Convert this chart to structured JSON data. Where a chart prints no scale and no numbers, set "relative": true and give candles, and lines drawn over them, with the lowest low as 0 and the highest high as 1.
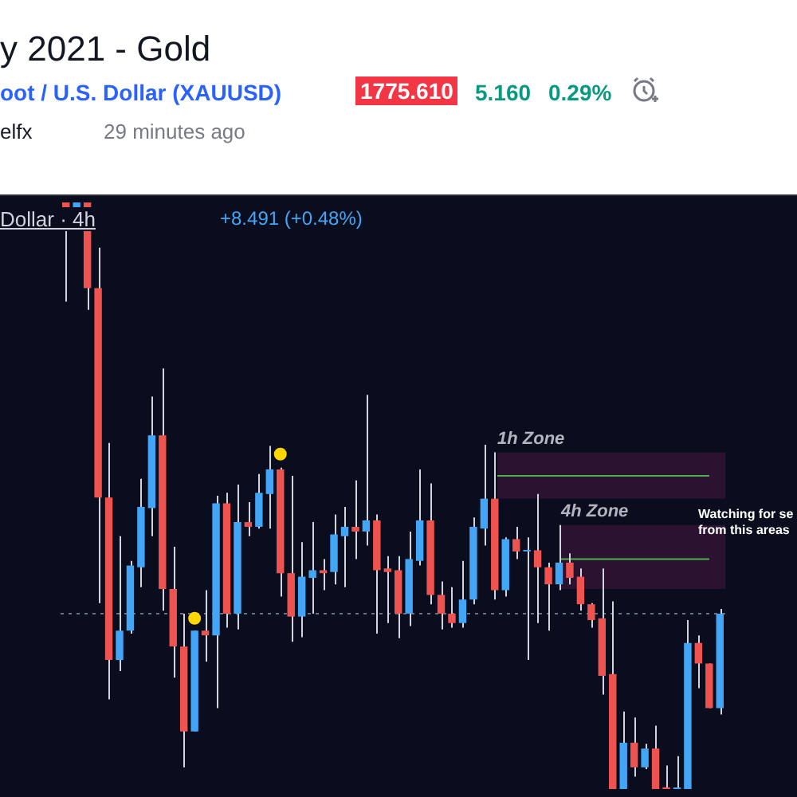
{
  "chart_data": {
    "type": "candlestick",
    "title": "y 2021 - Gold",
    "subtitle": "oot / U.S. Dollar (XAUUSD)",
    "relative": true,
    "legend": false,
    "annotations": [
      "1775.610",
      "5.160",
      "0.29%",
      "elfx",
      "29 minutes ago",
      "Dollar · 4h",
      "+8.491 (+0.48%)",
      "Watching for se",
      "from this areas"
    ],
    "categories": [
      null,
      null,
      null,
      null,
      null,
      null,
      null,
      null,
      null,
      null,
      null,
      null,
      null,
      null,
      null,
      null,
      null,
      null,
      null,
      null,
      null,
      null,
      null,
      null,
      null,
      null,
      null,
      null,
      null,
      null,
      null,
      null,
      null,
      null,
      null,
      null,
      null,
      null,
      null,
      null,
      null,
      null,
      null,
      null,
      null,
      null,
      null,
      null,
      null,
      null,
      null,
      null,
      null,
      null,
      null,
      null,
      null,
      null,
      null,
      null,
      null,
      null
    ],
    "ohlc": [
      [
        1.0,
        1.0,
        0.831,
        0.989
      ],
      [
        0.989,
        1.0,
        0.952,
        1.0
      ],
      [
        1.0,
        1.0,
        0.817,
        0.854
      ],
      [
        0.854,
        0.923,
        0.317,
        0.497
      ],
      [
        0.497,
        0.59,
        0.153,
        0.22
      ],
      [
        0.22,
        0.431,
        0.201,
        0.27
      ],
      [
        0.27,
        0.389,
        0.265,
        0.381
      ],
      [
        0.378,
        0.529,
        0.344,
        0.481
      ],
      [
        0.479,
        0.669,
        0.431,
        0.603
      ],
      [
        0.603,
        0.717,
        0.304,
        0.341
      ],
      [
        0.341,
        0.413,
        0.19,
        0.243
      ],
      [
        0.243,
        0.299,
        0.037,
        0.098
      ],
      [
        0.098,
        0.27,
        0.098,
        0.27
      ],
      [
        0.27,
        0.339,
        0.217,
        0.262
      ],
      [
        0.262,
        0.5,
        0.138,
        0.487
      ],
      [
        0.487,
        0.505,
        0.275,
        0.299
      ],
      [
        0.299,
        0.519,
        0.272,
        0.455
      ],
      [
        0.455,
        0.489,
        0.431,
        0.447
      ],
      [
        0.447,
        0.537,
        0.444,
        0.505
      ],
      [
        0.503,
        0.585,
        0.444,
        0.545
      ],
      [
        0.545,
        0.548,
        0.328,
        0.368
      ],
      [
        0.368,
        0.534,
        0.251,
        0.294
      ],
      [
        0.294,
        0.421,
        0.259,
        0.362
      ],
      [
        0.36,
        0.455,
        0.299,
        0.373
      ],
      [
        0.373,
        0.392,
        0.339,
        0.368
      ],
      [
        0.37,
        0.468,
        0.349,
        0.434
      ],
      [
        0.431,
        0.481,
        0.344,
        0.447
      ],
      [
        0.447,
        0.526,
        0.392,
        0.439
      ],
      [
        0.439,
        0.672,
        0.415,
        0.458
      ],
      [
        0.458,
        0.468,
        0.265,
        0.373
      ],
      [
        0.376,
        0.397,
        0.283,
        0.37
      ],
      [
        0.373,
        0.397,
        0.257,
        0.299
      ],
      [
        0.299,
        0.439,
        0.278,
        0.392
      ],
      [
        0.389,
        0.545,
        0.381,
        0.458
      ],
      [
        0.458,
        0.521,
        0.315,
        0.331
      ],
      [
        0.331,
        0.354,
        0.272,
        0.299
      ],
      [
        0.299,
        0.344,
        0.275,
        0.283
      ],
      [
        0.283,
        0.389,
        0.275,
        0.323
      ],
      [
        0.323,
        0.463,
        0.315,
        0.447
      ],
      [
        0.444,
        0.587,
        0.415,
        0.495
      ],
      [
        0.495,
        0.574,
        0.323,
        0.339
      ],
      [
        0.339,
        0.429,
        0.328,
        0.426
      ],
      [
        0.426,
        0.447,
        0.392,
        0.405
      ],
      [
        0.405,
        0.429,
        0.22,
        0.407
      ],
      [
        0.407,
        0.503,
        0.283,
        0.378
      ],
      [
        0.378,
        0.386,
        0.27,
        0.349
      ],
      [
        0.349,
        0.45,
        0.339,
        0.386
      ],
      [
        0.386,
        0.402,
        0.349,
        0.36
      ],
      [
        0.362,
        0.376,
        0.304,
        0.315
      ],
      [
        0.315,
        0.317,
        0.275,
        0.288
      ],
      [
        0.291,
        0.376,
        0.161,
        0.193
      ],
      [
        0.196,
        0.32,
        0,
        0
      ],
      [
        0,
        0.132,
        0,
        0.079
      ],
      [
        0.079,
        0.122,
        0.021,
        0.037
      ],
      [
        0.037,
        0.077,
        0.034,
        0.069
      ],
      [
        0.069,
        0.108,
        0,
        0
      ],
      [
        0.003,
        0.04,
        0,
        0
      ],
      [
        0,
        0.056,
        0,
        0
      ],
      [
        0,
        0.288,
        0,
        0.249
      ],
      [
        0.249,
        0.262,
        0.172,
        0.214
      ],
      [
        0.214,
        0.214,
        0.138,
        0.138
      ],
      [
        0.138,
        0.307,
        0.127,
        0.299
      ]
    ],
    "colors": [
      "#ef5350",
      "#42a5f5",
      "#ef5350",
      "#ef5350",
      "#ef5350",
      "#42a5f5",
      "#42a5f5",
      "#42a5f5",
      "#42a5f5",
      "#ef5350",
      "#ef5350",
      "#ef5350",
      "#42a5f5",
      "#ef5350",
      "#42a5f5",
      "#ef5350",
      "#42a5f5",
      "#ef5350",
      "#42a5f5",
      "#42a5f5",
      "#ef5350",
      "#ef5350",
      "#42a5f5",
      "#42a5f5",
      "#ef5350",
      "#42a5f5",
      "#42a5f5",
      "#ef5350",
      "#42a5f5",
      "#ef5350",
      "#ef5350",
      "#ef5350",
      "#42a5f5",
      "#42a5f5",
      "#ef5350",
      "#ef5350",
      "#ef5350",
      "#42a5f5",
      "#42a5f5",
      "#42a5f5",
      "#ef5350",
      "#42a5f5",
      "#ef5350",
      "#42a5f5",
      "#ef5350",
      "#ef5350",
      "#42a5f5",
      "#ef5350",
      "#ef5350",
      "#ef5350",
      "#ef5350",
      "#ef5350",
      "#42a5f5",
      "#ef5350",
      "#42a5f5",
      "#ef5350",
      "#ef5350",
      "#42a5f5",
      "#42a5f5",
      "#ef5350",
      "#ef5350",
      "#42a5f5"
    ],
    "series": [
      {
        "type": "scatter",
        "color": "#ffd600",
        "values": [
          null,
          null,
          null,
          null,
          null,
          null,
          null,
          null,
          null,
          null,
          null,
          null,
          0.291,
          null,
          null,
          null,
          null,
          null,
          null,
          null,
          0.571,
          null,
          null,
          null,
          null,
          null,
          null,
          null,
          null,
          null,
          null,
          null,
          null,
          null,
          null,
          null,
          null,
          null,
          null,
          null,
          null,
          null,
          null,
          null,
          null,
          null,
          null,
          null,
          null,
          null,
          null,
          null,
          null,
          null,
          null,
          null,
          null,
          null,
          null,
          null,
          null,
          null
        ]
      }
    ],
    "marker": "circle",
    "bands": [
      {
        "axis": "y",
        "from": 0.495,
        "to": 0.574,
        "label": "1h Zone",
        "color": "#2a1230"
      },
      {
        "axis": "y",
        "from": 0.341,
        "to": 0.45,
        "label": "4h Zone",
        "color": "#2a1230"
      }
    ],
    "ref_lines": [
      {
        "axis": "y",
        "value": 0.534,
        "color": "#4caf50"
      },
      {
        "axis": "y",
        "value": 0.392,
        "color": "#4caf50"
      },
      {
        "axis": "y",
        "value": 0.299,
        "color": "#6b7080",
        "line_style": "dotted"
      }
    ]
  }
}
